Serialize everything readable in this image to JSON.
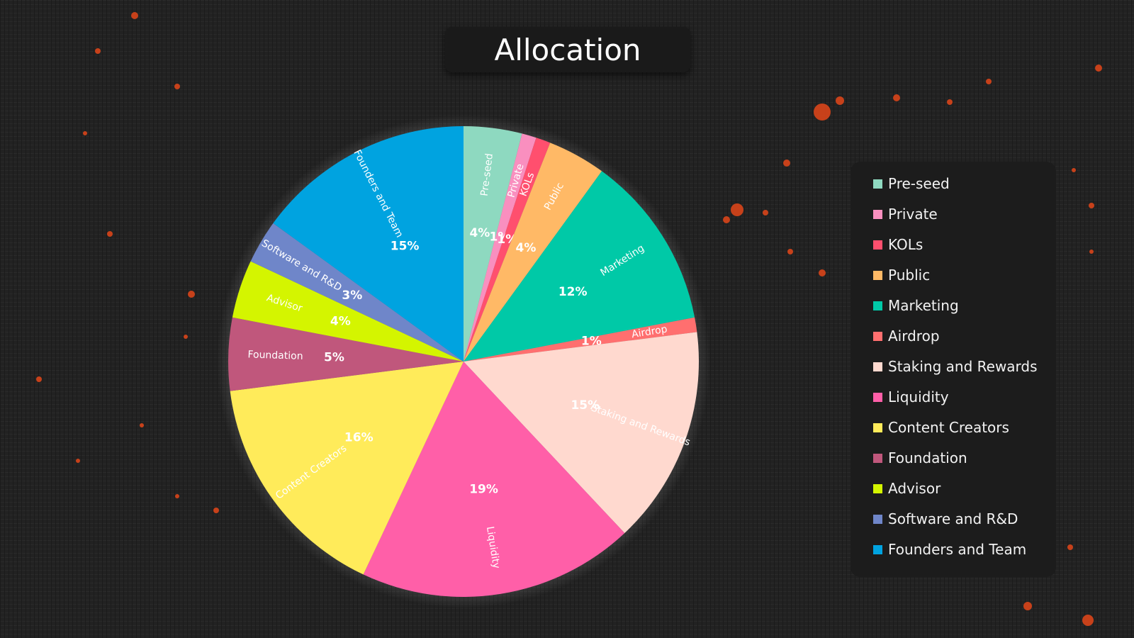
{
  "chart_data": {
    "type": "pie",
    "title": "Allocation",
    "slices": [
      {
        "name": "Pre-seed",
        "value": 4,
        "value_label": "4%",
        "color": "#8ed9c0"
      },
      {
        "name": "Private",
        "value": 1,
        "value_label": "1%",
        "color": "#f98fbf"
      },
      {
        "name": "KOLs",
        "value": 1,
        "value_label": "1%",
        "color": "#ff4f6e"
      },
      {
        "name": "Public",
        "value": 4,
        "value_label": "4%",
        "color": "#ffb966"
      },
      {
        "name": "Marketing",
        "value": 12,
        "value_label": "12%",
        "color": "#00c9a7"
      },
      {
        "name": "Airdrop",
        "value": 1,
        "value_label": "1%",
        "color": "#ff6f6f"
      },
      {
        "name": "Staking and Rewards",
        "value": 15,
        "value_label": "15%",
        "color": "#ffd9cf"
      },
      {
        "name": "Liquidity",
        "value": 19,
        "value_label": "19%",
        "color": "#ff5fa8"
      },
      {
        "name": "Content Creators",
        "value": 16,
        "value_label": "16%",
        "color": "#ffeb5a"
      },
      {
        "name": "Foundation",
        "value": 5,
        "value_label": "5%",
        "color": "#c0577c"
      },
      {
        "name": "Advisor",
        "value": 4,
        "value_label": "4%",
        "color": "#d4f500"
      },
      {
        "name": "Software and R&D",
        "value": 3,
        "value_label": "3%",
        "color": "#6f86c9"
      },
      {
        "name": "Founders and Team",
        "value": 15,
        "value_label": "15%",
        "color": "#00a3e0"
      }
    ],
    "legend_position": "right"
  }
}
